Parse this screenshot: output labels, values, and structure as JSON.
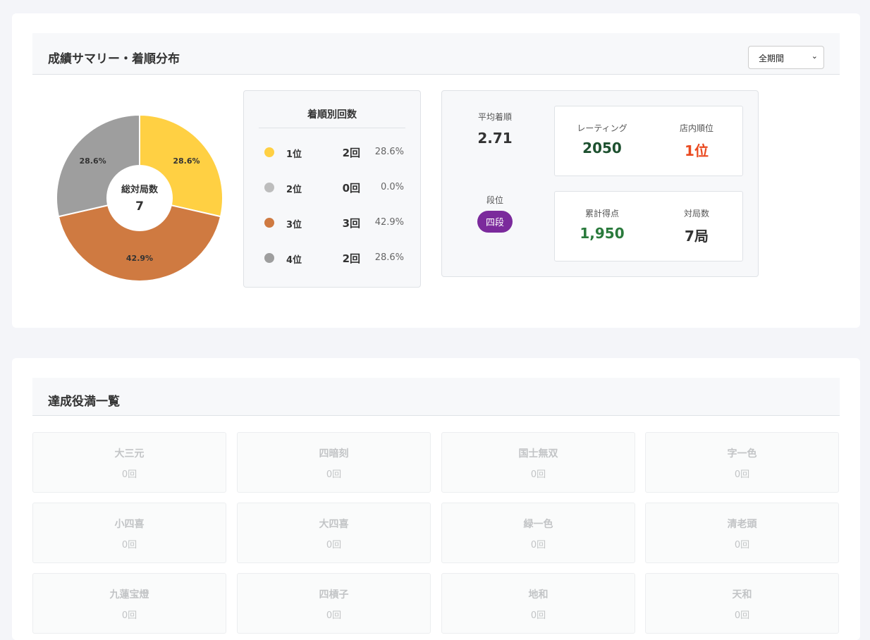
{
  "summary": {
    "title": "成績サマリー・着順分布",
    "period_select": "全期間",
    "center_label": "総対局数",
    "center_value": "7",
    "rank_table_title": "着順別回数",
    "ranks": [
      {
        "label": "1位",
        "count": "2回",
        "pct": "28.6%",
        "color": "#ffd043"
      },
      {
        "label": "2位",
        "count": "0回",
        "pct": "0.0%",
        "color": "#bdbdbd"
      },
      {
        "label": "3位",
        "count": "3回",
        "pct": "42.9%",
        "color": "#cf7a41"
      },
      {
        "label": "4位",
        "count": "2回",
        "pct": "28.6%",
        "color": "#9e9e9e"
      }
    ],
    "avg_label": "平均着順",
    "avg_value": "2.71",
    "dan_label": "段位",
    "dan_value": "四段",
    "rating_label": "レーティング",
    "rating_value": "2050",
    "shop_rank_label": "店内順位",
    "shop_rank_value": "1位",
    "total_points_label": "累計得点",
    "total_points_value": "1,950",
    "games_label": "対局数",
    "games_value": "7局"
  },
  "chart_data": {
    "type": "pie",
    "donut": true,
    "categories": [
      "1位",
      "2位",
      "3位",
      "4位"
    ],
    "values": [
      2,
      0,
      3,
      2
    ],
    "data_labels": [
      "28.6%",
      "0.0%",
      "42.9%",
      "28.6%"
    ],
    "colors": [
      "#ffd043",
      "#bdbdbd",
      "#cf7a41",
      "#9e9e9e"
    ]
  },
  "yakuman": {
    "title": "達成役満一覧",
    "items": [
      {
        "name": "大三元",
        "count": "0回"
      },
      {
        "name": "四暗刻",
        "count": "0回"
      },
      {
        "name": "国士無双",
        "count": "0回"
      },
      {
        "name": "字一色",
        "count": "0回"
      },
      {
        "name": "小四喜",
        "count": "0回"
      },
      {
        "name": "大四喜",
        "count": "0回"
      },
      {
        "name": "緑一色",
        "count": "0回"
      },
      {
        "name": "清老頭",
        "count": "0回"
      },
      {
        "name": "九蓮宝燈",
        "count": "0回"
      },
      {
        "name": "四槓子",
        "count": "0回"
      },
      {
        "name": "地和",
        "count": "0回"
      },
      {
        "name": "天和",
        "count": "0回"
      }
    ]
  }
}
